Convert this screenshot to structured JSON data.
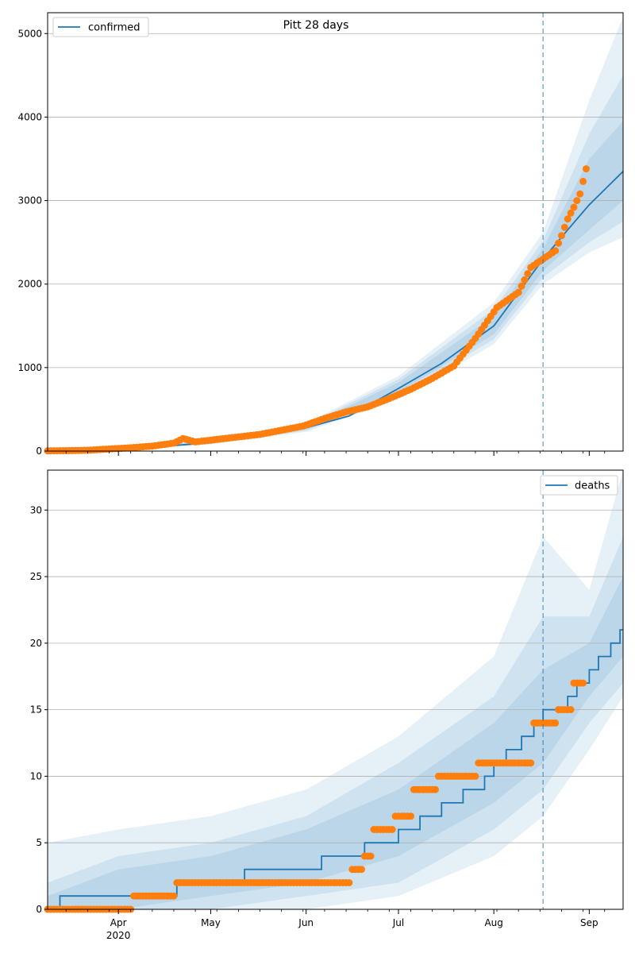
{
  "chart_data": [
    {
      "type": "line",
      "title": "Pitt 28 days",
      "legend": {
        "label": "confirmed",
        "position": "top-left"
      },
      "ylim": [
        0,
        5250
      ],
      "yticks": [
        0,
        1000,
        2000,
        3000,
        4000,
        5000
      ],
      "grid": "y",
      "forecast_start": "2020-08-17",
      "model_line": {
        "name": "confirmed",
        "x": [
          "2020-03-09",
          "2020-03-20",
          "2020-04-01",
          "2020-04-15",
          "2020-05-01",
          "2020-05-15",
          "2020-06-01",
          "2020-06-15",
          "2020-07-01",
          "2020-07-15",
          "2020-08-01",
          "2020-08-10",
          "2020-08-17",
          "2020-08-25",
          "2020-09-01",
          "2020-09-12"
        ],
        "y": [
          5,
          10,
          25,
          55,
          100,
          170,
          280,
          420,
          750,
          1050,
          1500,
          1950,
          2300,
          2650,
          2950,
          3350
        ]
      },
      "bands": [
        {
          "x": [
            "2020-03-09",
            "2020-05-01",
            "2020-06-01",
            "2020-07-01",
            "2020-08-01",
            "2020-08-17",
            "2020-09-01",
            "2020-09-12"
          ],
          "lower": [
            0,
            80,
            230,
            620,
            1280,
            2000,
            2380,
            2560
          ],
          "upper": [
            10,
            120,
            330,
            900,
            1780,
            2620,
            4200,
            5200
          ]
        },
        {
          "x": [
            "2020-03-09",
            "2020-05-01",
            "2020-06-01",
            "2020-07-01",
            "2020-08-01",
            "2020-08-17",
            "2020-09-01",
            "2020-09-12"
          ],
          "lower": [
            0,
            85,
            245,
            660,
            1340,
            2080,
            2500,
            2750
          ],
          "upper": [
            8,
            115,
            315,
            860,
            1700,
            2520,
            3800,
            4500
          ]
        },
        {
          "x": [
            "2020-03-09",
            "2020-05-01",
            "2020-06-01",
            "2020-07-01",
            "2020-08-01",
            "2020-08-17",
            "2020-09-01",
            "2020-09-12"
          ],
          "lower": [
            0,
            90,
            260,
            700,
            1400,
            2160,
            2650,
            3000
          ],
          "upper": [
            7,
            110,
            300,
            820,
            1620,
            2430,
            3500,
            3950
          ]
        }
      ],
      "observed": {
        "name": "confirmed observed",
        "x": [
          "2020-03-09",
          "2020-03-15",
          "2020-03-22",
          "2020-03-29",
          "2020-04-05",
          "2020-04-12",
          "2020-04-19",
          "2020-04-22",
          "2020-04-26",
          "2020-05-03",
          "2020-05-10",
          "2020-05-17",
          "2020-05-24",
          "2020-05-31",
          "2020-06-07",
          "2020-06-14",
          "2020-06-21",
          "2020-06-28",
          "2020-07-05",
          "2020-07-12",
          "2020-07-19",
          "2020-07-26",
          "2020-08-02",
          "2020-08-09",
          "2020-08-13",
          "2020-08-17",
          "2020-08-21",
          "2020-08-23",
          "2020-08-25",
          "2020-08-27",
          "2020-08-29",
          "2020-08-31"
        ],
        "y": [
          3,
          5,
          10,
          25,
          40,
          60,
          95,
          150,
          110,
          140,
          170,
          200,
          250,
          300,
          390,
          470,
          530,
          630,
          740,
          870,
          1020,
          1350,
          1720,
          1900,
          2200,
          2300,
          2400,
          2580,
          2780,
          2920,
          3080,
          3380
        ]
      }
    },
    {
      "type": "line",
      "legend": {
        "label": "deaths",
        "position": "top-right"
      },
      "ylim": [
        0,
        33
      ],
      "yticks": [
        0,
        5,
        10,
        15,
        20,
        25,
        30
      ],
      "grid": "y",
      "forecast_start": "2020-08-17",
      "model_line": {
        "name": "deaths",
        "x": [
          "2020-03-09",
          "2020-03-13",
          "2020-04-20",
          "2020-05-12",
          "2020-06-06",
          "2020-06-20",
          "2020-07-01",
          "2020-07-08",
          "2020-07-15",
          "2020-07-22",
          "2020-07-29",
          "2020-08-01",
          "2020-08-05",
          "2020-08-10",
          "2020-08-14",
          "2020-08-17",
          "2020-08-20",
          "2020-08-25",
          "2020-08-28",
          "2020-09-01",
          "2020-09-04",
          "2020-09-08",
          "2020-09-11"
        ],
        "y": [
          0,
          1,
          2,
          3,
          4,
          5,
          6,
          7,
          8,
          9,
          10,
          11,
          12,
          13,
          14,
          15,
          15,
          16,
          17,
          18,
          19,
          20,
          21
        ]
      },
      "bands": [
        {
          "x": [
            "2020-03-09",
            "2020-04-01",
            "2020-05-01",
            "2020-06-01",
            "2020-07-01",
            "2020-08-01",
            "2020-08-17",
            "2020-09-01",
            "2020-09-12"
          ],
          "lower": [
            0,
            0,
            0,
            0,
            1,
            4,
            7,
            12,
            16
          ],
          "upper": [
            5,
            6,
            7,
            9,
            13,
            19,
            28,
            24,
            33
          ]
        },
        {
          "x": [
            "2020-03-09",
            "2020-04-01",
            "2020-05-01",
            "2020-06-01",
            "2020-07-01",
            "2020-08-01",
            "2020-08-17",
            "2020-09-01",
            "2020-09-12"
          ],
          "lower": [
            0,
            0,
            0,
            1,
            2,
            6,
            9,
            14,
            17
          ],
          "upper": [
            2,
            4,
            5,
            7,
            11,
            16,
            22,
            22,
            28
          ]
        },
        {
          "x": [
            "2020-03-09",
            "2020-04-01",
            "2020-05-01",
            "2020-06-01",
            "2020-07-01",
            "2020-08-01",
            "2020-08-17",
            "2020-09-01",
            "2020-09-12"
          ],
          "lower": [
            0,
            0,
            1,
            2,
            4,
            8,
            11,
            16,
            19
          ],
          "upper": [
            1,
            3,
            4,
            6,
            9,
            14,
            18,
            20,
            25
          ]
        }
      ],
      "observed": {
        "name": "deaths observed",
        "segments": [
          {
            "from": "2020-03-09",
            "to": "2020-04-05",
            "value": 0
          },
          {
            "from": "2020-04-06",
            "to": "2020-04-19",
            "value": 1
          },
          {
            "from": "2020-04-20",
            "to": "2020-06-15",
            "value": 2
          },
          {
            "from": "2020-06-16",
            "to": "2020-06-19",
            "value": 3
          },
          {
            "from": "2020-06-20",
            "to": "2020-06-22",
            "value": 4
          },
          {
            "from": "2020-06-23",
            "to": "2020-06-29",
            "value": 6
          },
          {
            "from": "2020-06-30",
            "to": "2020-07-05",
            "value": 7
          },
          {
            "from": "2020-07-06",
            "to": "2020-07-13",
            "value": 9
          },
          {
            "from": "2020-07-14",
            "to": "2020-07-26",
            "value": 10
          },
          {
            "from": "2020-07-27",
            "to": "2020-08-13",
            "value": 11
          },
          {
            "from": "2020-08-14",
            "to": "2020-08-21",
            "value": 14
          },
          {
            "from": "2020-08-22",
            "to": "2020-08-26",
            "value": 15
          },
          {
            "from": "2020-08-27",
            "to": "2020-08-30",
            "value": 17
          }
        ]
      }
    }
  ],
  "xaxis": {
    "range": [
      "2020-03-09",
      "2020-09-12"
    ],
    "major_ticks": [
      {
        "date": "2020-04-01",
        "label": "Apr",
        "sublabel": "2020"
      },
      {
        "date": "2020-05-01",
        "label": "May"
      },
      {
        "date": "2020-06-01",
        "label": "Jun"
      },
      {
        "date": "2020-07-01",
        "label": "Jul"
      },
      {
        "date": "2020-08-01",
        "label": "Aug"
      },
      {
        "date": "2020-09-01",
        "label": "Sep"
      }
    ],
    "minor_tick_interval_days": 7
  },
  "colors": {
    "line": "#1f77b4",
    "observed": "#ff7f0e",
    "band": "#1f77b4",
    "forecast_line": "#1f77b4",
    "grid": "#b0b0b0"
  }
}
